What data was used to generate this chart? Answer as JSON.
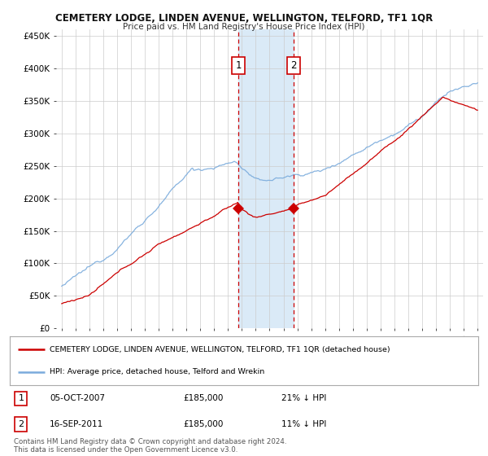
{
  "title": "CEMETERY LODGE, LINDEN AVENUE, WELLINGTON, TELFORD, TF1 1QR",
  "subtitle": "Price paid vs. HM Land Registry's House Price Index (HPI)",
  "ylabel_ticks": [
    "£0",
    "£50K",
    "£100K",
    "£150K",
    "£200K",
    "£250K",
    "£300K",
    "£350K",
    "£400K",
    "£450K"
  ],
  "ytick_values": [
    0,
    50000,
    100000,
    150000,
    200000,
    250000,
    300000,
    350000,
    400000,
    450000
  ],
  "ylim": [
    0,
    460000
  ],
  "xlim_start": 1994.6,
  "xlim_end": 2025.4,
  "marker1_x": 2007.76,
  "marker1_y": 185000,
  "marker2_x": 2011.71,
  "marker2_y": 185000,
  "legend_red": "CEMETERY LODGE, LINDEN AVENUE, WELLINGTON, TELFORD, TF1 1QR (detached house)",
  "legend_blue": "HPI: Average price, detached house, Telford and Wrekin",
  "note1_label": "1",
  "note1_date": "05-OCT-2007",
  "note1_price": "£185,000",
  "note1_hpi": "21% ↓ HPI",
  "note2_label": "2",
  "note2_date": "16-SEP-2011",
  "note2_price": "£185,000",
  "note2_hpi": "11% ↓ HPI",
  "copyright": "Contains HM Land Registry data © Crown copyright and database right 2024.\nThis data is licensed under the Open Government Licence v3.0.",
  "red_color": "#cc0000",
  "blue_color": "#7aabdc",
  "shade_color": "#daeaf7",
  "background_color": "#ffffff",
  "grid_color": "#cccccc"
}
